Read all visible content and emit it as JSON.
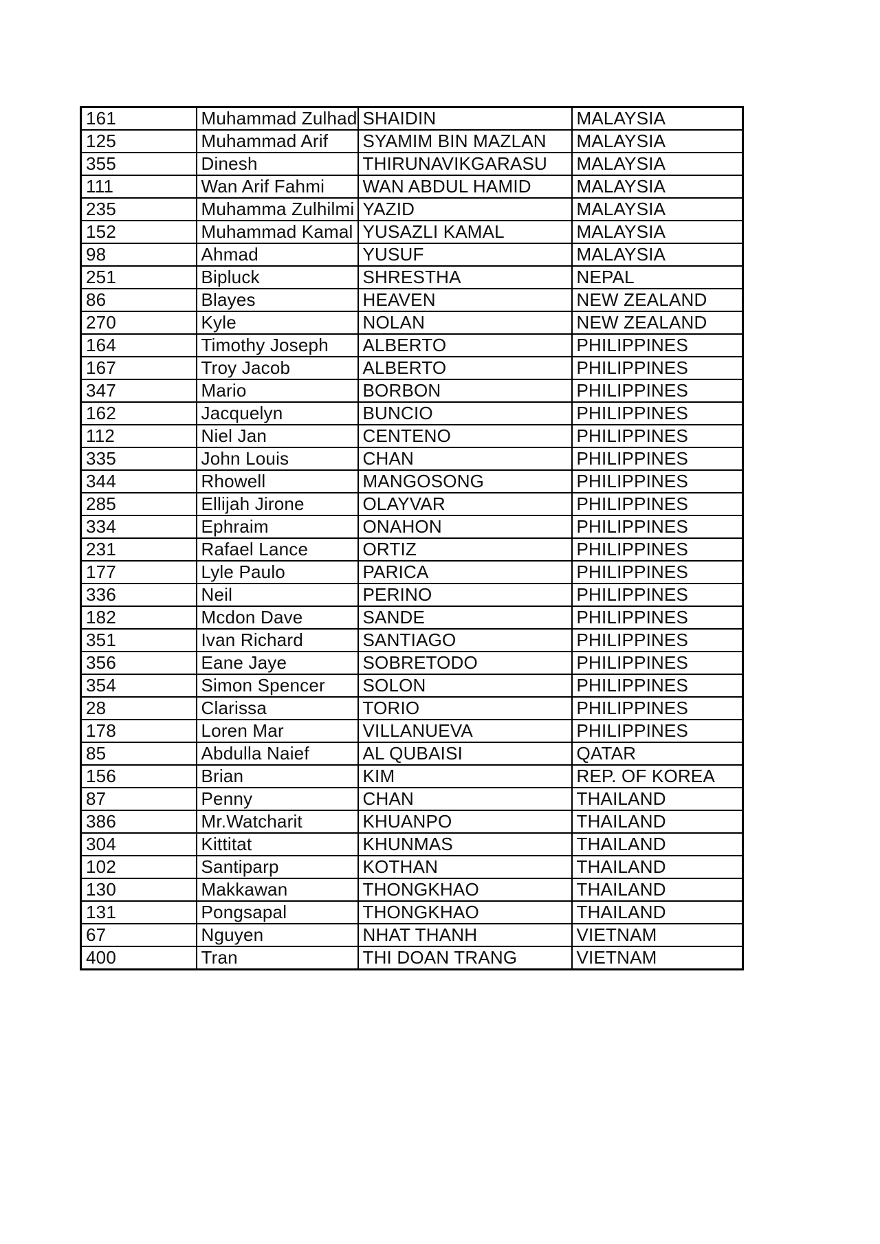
{
  "page": {
    "background": "#ffffff",
    "border_color": "#000000",
    "text_color": "#0f0f0f"
  },
  "table": {
    "rows": [
      [
        "161",
        "Muhammad Zulhad",
        "SHAIDIN",
        "MALAYSIA"
      ],
      [
        "125",
        "Muhammad Arif",
        "SYAMIM BIN MAZLAN",
        "MALAYSIA"
      ],
      [
        "355",
        "Dinesh",
        "THIRUNAVIKGARASU",
        "MALAYSIA"
      ],
      [
        "111",
        "Wan Arif Fahmi",
        "WAN ABDUL HAMID",
        "MALAYSIA"
      ],
      [
        "235",
        "Muhamma Zulhilmi",
        "YAZID",
        "MALAYSIA"
      ],
      [
        "152",
        "Muhammad Kamal",
        "YUSAZLI KAMAL",
        "MALAYSIA"
      ],
      [
        "98",
        "Ahmad",
        "YUSUF",
        "MALAYSIA"
      ],
      [
        "251",
        "Bipluck",
        "SHRESTHA",
        "NEPAL"
      ],
      [
        "86",
        "Blayes",
        "HEAVEN",
        "NEW ZEALAND"
      ],
      [
        "270",
        "Kyle",
        "NOLAN",
        "NEW ZEALAND"
      ],
      [
        "164",
        "Timothy Joseph",
        "ALBERTO",
        "PHILIPPINES"
      ],
      [
        "167",
        "Troy Jacob",
        "ALBERTO",
        "PHILIPPINES"
      ],
      [
        "347",
        "Mario",
        "BORBON",
        "PHILIPPINES"
      ],
      [
        "162",
        "Jacquelyn",
        "BUNCIO",
        "PHILIPPINES"
      ],
      [
        "112",
        "Niel Jan",
        "CENTENO",
        "PHILIPPINES"
      ],
      [
        "335",
        "John Louis",
        "CHAN",
        "PHILIPPINES"
      ],
      [
        "344",
        "Rhowell",
        "MANGOSONG",
        "PHILIPPINES"
      ],
      [
        "285",
        "Ellijah Jirone",
        "OLAYVAR",
        "PHILIPPINES"
      ],
      [
        "334",
        "Ephraim",
        "ONAHON",
        "PHILIPPINES"
      ],
      [
        "231",
        "Rafael Lance",
        "ORTIZ",
        "PHILIPPINES"
      ],
      [
        "177",
        "Lyle Paulo",
        "PARICA",
        "PHILIPPINES"
      ],
      [
        "336",
        "Neil",
        "PERINO",
        "PHILIPPINES"
      ],
      [
        "182",
        "Mcdon Dave",
        "SANDE",
        "PHILIPPINES"
      ],
      [
        "351",
        "Ivan Richard",
        "SANTIAGO",
        "PHILIPPINES"
      ],
      [
        "356",
        "Eane Jaye",
        "SOBRETODO",
        "PHILIPPINES"
      ],
      [
        "354",
        "Simon Spencer",
        "SOLON",
        "PHILIPPINES"
      ],
      [
        "28",
        "Clarissa",
        "TORIO",
        "PHILIPPINES"
      ],
      [
        "178",
        "Loren Mar",
        "VILLANUEVA",
        "PHILIPPINES"
      ],
      [
        "85",
        "Abdulla Naief",
        "AL QUBAISI",
        "QATAR"
      ],
      [
        "156",
        "Brian",
        "KIM",
        "REP. OF KOREA"
      ],
      [
        "87",
        "Penny",
        "CHAN",
        "THAILAND"
      ],
      [
        "386",
        "Mr.Watcharit",
        "KHUANPO",
        "THAILAND"
      ],
      [
        "304",
        "Kittitat",
        "KHUNMAS",
        "THAILAND"
      ],
      [
        "102",
        "Santiparp",
        "KOTHAN",
        "THAILAND"
      ],
      [
        "130",
        "Makkawan",
        "THONGKHAO",
        "THAILAND"
      ],
      [
        "131",
        "Pongsapal",
        "THONGKHAO",
        "THAILAND"
      ],
      [
        "67",
        "Nguyen",
        "NHAT THANH",
        "VIETNAM"
      ],
      [
        "400",
        "Tran",
        "THI DOAN TRANG",
        "VIETNAM"
      ]
    ]
  }
}
